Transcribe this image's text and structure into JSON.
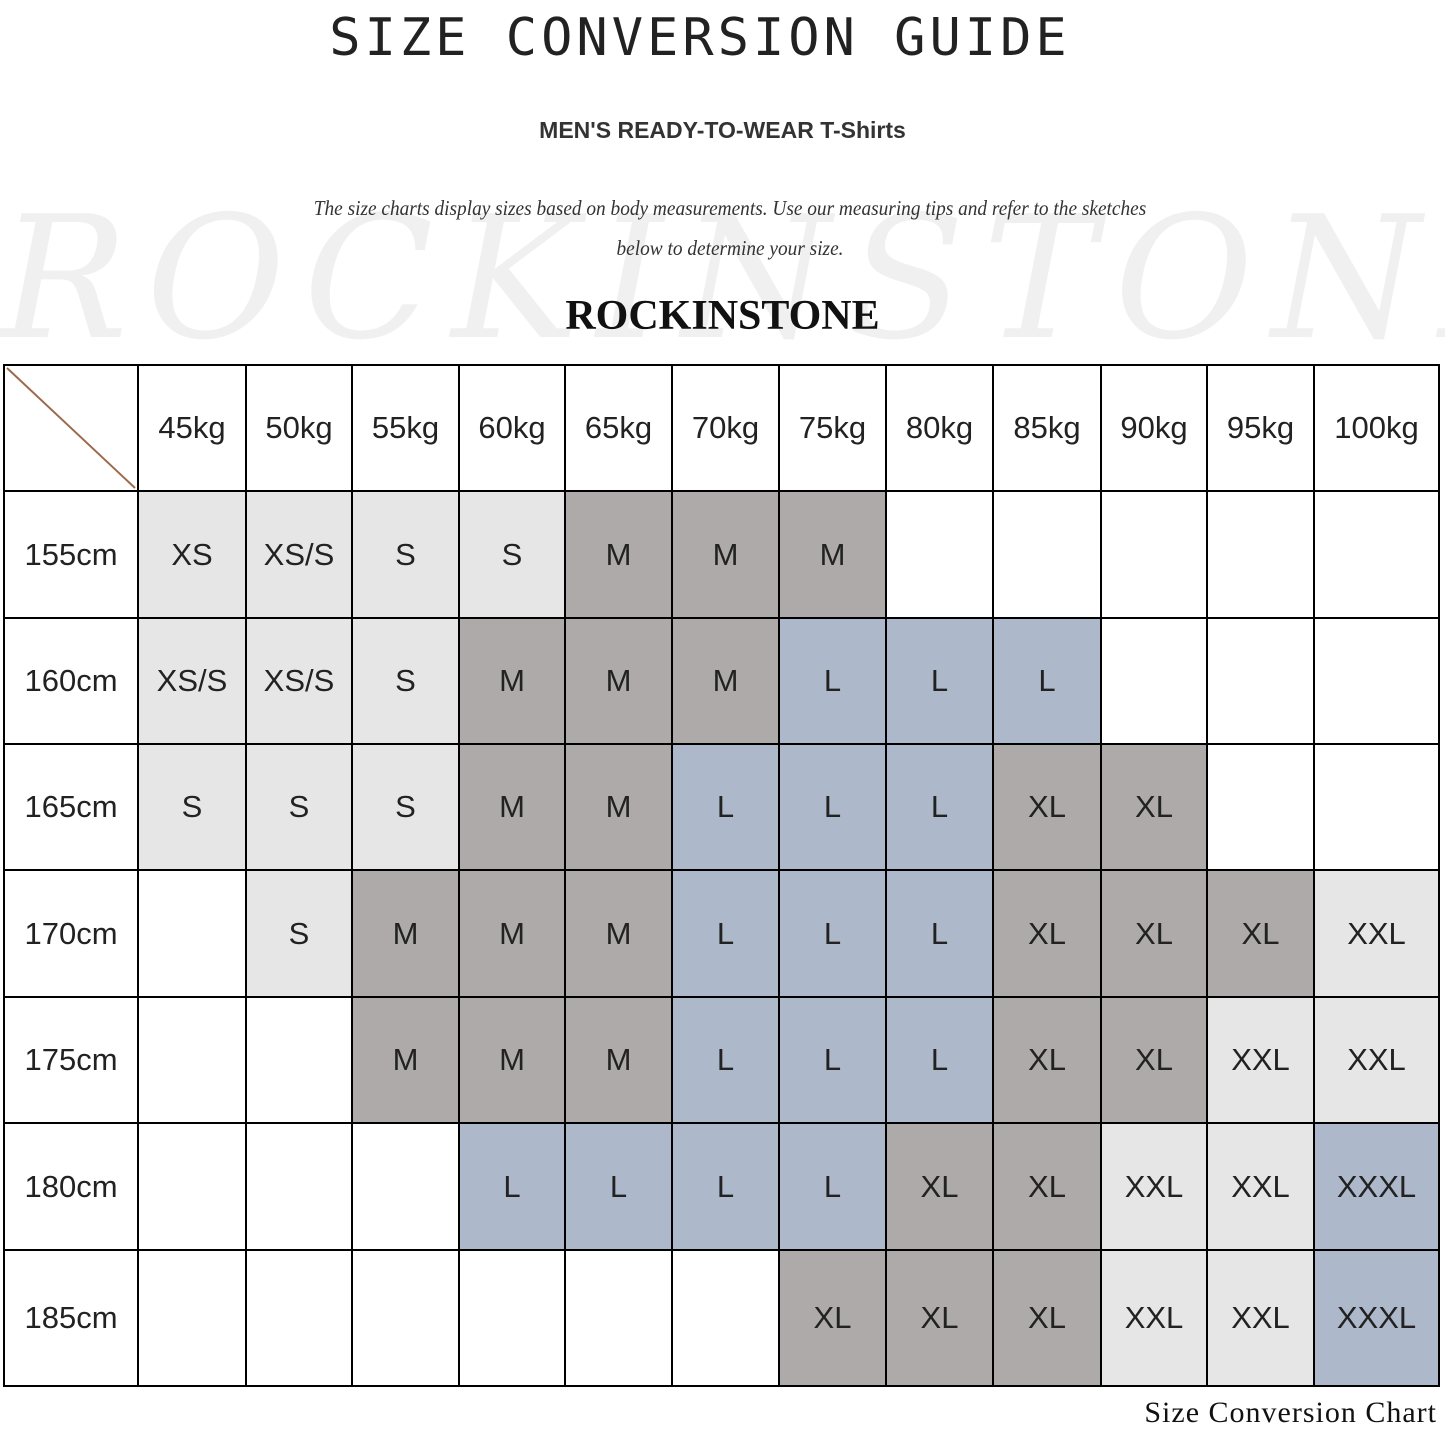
{
  "title": "SIZE CONVERSION GUIDE",
  "subtitle": "MEN'S READY-TO-WEAR T-Shirts",
  "description_line1": "The size charts display sizes based on body measurements. Use our measuring tips and refer to the sketches",
  "description_line2": "below to determine your size.",
  "watermark": "ROCKINSTONE",
  "brand": "ROCKINSTONE",
  "footer": "Size Conversion Chart",
  "colors": {
    "light": "#e6e6e6",
    "dark": "#aeaaaa",
    "blue": "#adb9ca",
    "empty": "#ffffff",
    "diagonal": "#9b6a4a"
  },
  "size_color_map": {
    "XS": "light",
    "XS/S": "light",
    "S": "light",
    "M": "dark",
    "L": "blue",
    "XL": "dark",
    "XXL": "light",
    "XXXL": "blue"
  },
  "chart_data": {
    "type": "table",
    "columns": [
      "45kg",
      "50kg",
      "55kg",
      "60kg",
      "65kg",
      "70kg",
      "75kg",
      "80kg",
      "85kg",
      "90kg",
      "95kg",
      "100kg"
    ],
    "rows": [
      {
        "label": "155cm",
        "values": [
          "XS",
          "XS/S",
          "S",
          "S",
          "M",
          "M",
          "M",
          "",
          "",
          "",
          "",
          ""
        ]
      },
      {
        "label": "160cm",
        "values": [
          "XS/S",
          "XS/S",
          "S",
          "M",
          "M",
          "M",
          "L",
          "L",
          "L",
          "",
          "",
          ""
        ]
      },
      {
        "label": "165cm",
        "values": [
          "S",
          "S",
          "S",
          "M",
          "M",
          "L",
          "L",
          "L",
          "XL",
          "XL",
          "",
          ""
        ]
      },
      {
        "label": "170cm",
        "values": [
          "",
          "S",
          "M",
          "M",
          "M",
          "L",
          "L",
          "L",
          "XL",
          "XL",
          "XL",
          "XXL"
        ]
      },
      {
        "label": "175cm",
        "values": [
          "",
          "",
          "M",
          "M",
          "M",
          "L",
          "L",
          "L",
          "XL",
          "XL",
          "XXL",
          "XXL"
        ]
      },
      {
        "label": "180cm",
        "values": [
          "",
          "",
          "",
          "L",
          "L",
          "L",
          "L",
          "XL",
          "XL",
          "XXL",
          "XXL",
          "XXXL"
        ]
      },
      {
        "label": "185cm",
        "values": [
          "",
          "",
          "",
          "",
          "",
          "",
          "XL",
          "XL",
          "XL",
          "XXL",
          "XXL",
          "XXXL"
        ]
      }
    ]
  }
}
